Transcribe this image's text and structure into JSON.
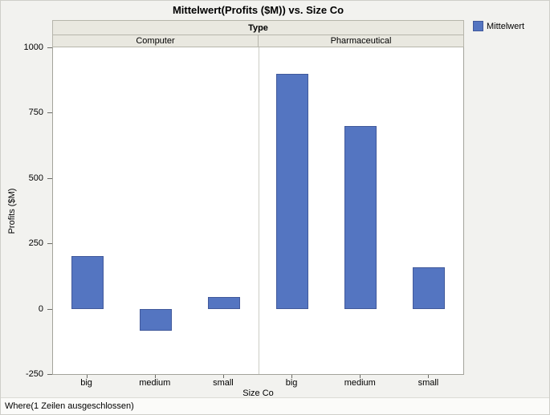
{
  "title": "Mittelwert(Profits ($M)) vs. Size Co",
  "legend": {
    "label": "Mittelwert",
    "color": "#5475c1"
  },
  "footer": "Where(1 Zeilen ausgeschlossen)",
  "chart_data": {
    "type": "bar",
    "title": "Mittelwert(Profits ($M)) vs. Size Co",
    "group_header": "Type",
    "groups": [
      "Computer",
      "Pharmaceutical"
    ],
    "categories": [
      "big",
      "medium",
      "small"
    ],
    "series": [
      {
        "name": "Mittelwert",
        "group": "Computer",
        "values": [
          200,
          -85,
          45
        ]
      },
      {
        "name": "Mittelwert",
        "group": "Pharmaceutical",
        "values": [
          900,
          700,
          160
        ]
      }
    ],
    "xlabel": "Size Co",
    "ylabel": "Profits ($M)",
    "ylim": [
      -250,
      1000
    ],
    "yticks": [
      -250,
      0,
      250,
      500,
      750,
      1000
    ],
    "bar_color": "#5475c1",
    "bar_border_color": "#41599b",
    "legend_position": "top-right",
    "grid": false
  }
}
